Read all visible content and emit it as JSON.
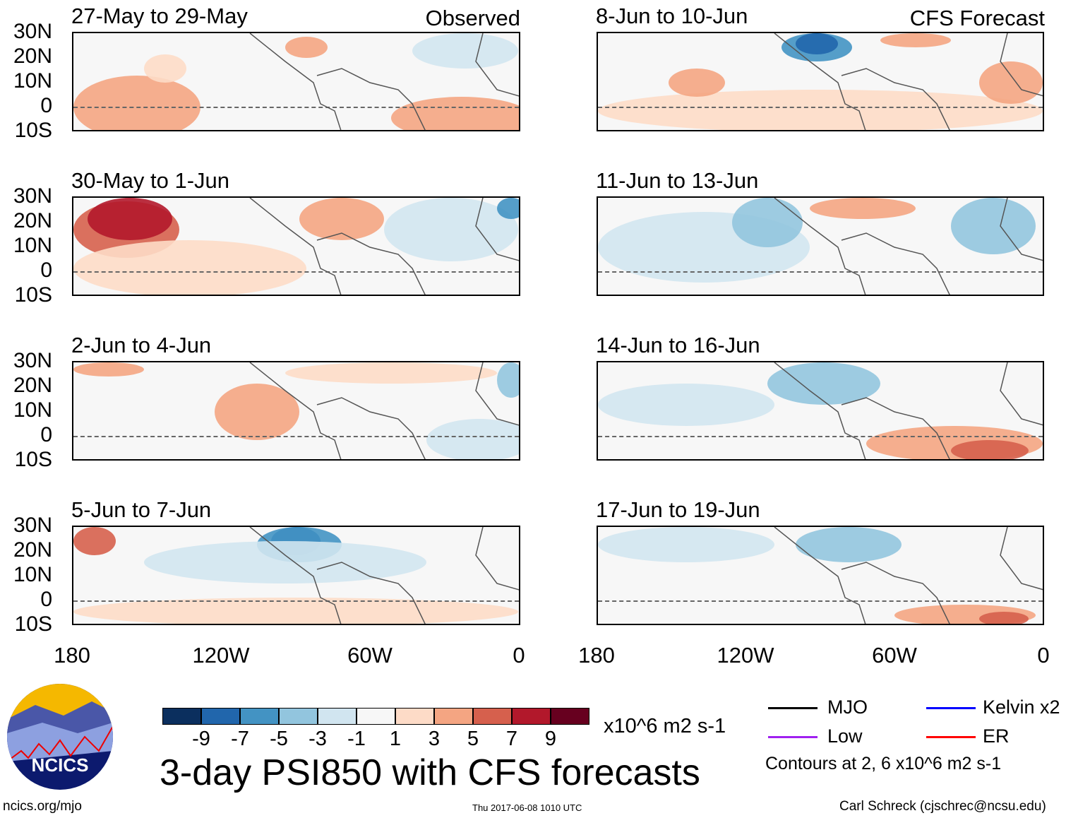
{
  "panels_left": [
    {
      "title": "27-May to 29-May",
      "tag": "Observed"
    },
    {
      "title": "30-May to 1-Jun"
    },
    {
      "title": "2-Jun to 4-Jun"
    },
    {
      "title": "5-Jun to 7-Jun"
    }
  ],
  "panels_right": [
    {
      "title": "8-Jun to 10-Jun",
      "tag": "CFS Forecast"
    },
    {
      "title": "11-Jun to 13-Jun"
    },
    {
      "title": "14-Jun to 16-Jun"
    },
    {
      "title": "17-Jun to 19-Jun"
    }
  ],
  "lat_labels": [
    "30N",
    "20N",
    "10N",
    "0",
    "10S"
  ],
  "lon_labels": [
    "180",
    "120W",
    "60W",
    "0"
  ],
  "colorbar": {
    "colors": [
      "#0b2f5e",
      "#2166ac",
      "#4393c3",
      "#92c5de",
      "#d1e5f0",
      "#f7f7f7",
      "#fddbc7",
      "#f4a582",
      "#d6604d",
      "#b2182b",
      "#67001f"
    ],
    "labels": [
      "-9",
      "-7",
      "-5",
      "-3",
      "-1",
      "1",
      "3",
      "5",
      "7",
      "9"
    ],
    "units": "x10^6 m2 s-1"
  },
  "title": "3-day PSI850 with CFS forecasts",
  "legend": {
    "items": [
      {
        "label": "MJO",
        "color": "#000000"
      },
      {
        "label": "Kelvin x2",
        "color": "#0000ff"
      },
      {
        "label": "Low",
        "color": "#a020f0"
      },
      {
        "label": "ER",
        "color": "#ff0000"
      }
    ],
    "note": "Contours at 2, 6 x10^6 m2 s-1"
  },
  "logo": {
    "text": "NCICS"
  },
  "footer": {
    "url": "ncics.org/mjo",
    "timestamp": "Thu 2017-06-08 1010 UTC",
    "author": "Carl Schreck (cjschrec@ncsu.edu)"
  }
}
